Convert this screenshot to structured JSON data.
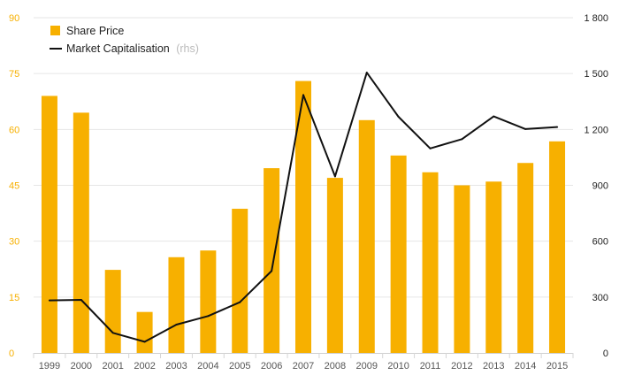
{
  "chart_data": {
    "type": "bar",
    "categories": [
      "1999",
      "2000",
      "2001",
      "2002",
      "2003",
      "2004",
      "2005",
      "2006",
      "2007",
      "2008",
      "2009",
      "2010",
      "2011",
      "2012",
      "2013",
      "2014",
      "2015"
    ],
    "series": [
      {
        "name": "Share Price",
        "type": "bar",
        "axis": "left",
        "color": "#f7b000",
        "values": [
          69,
          64.5,
          22.3,
          11,
          25.7,
          27.5,
          38.7,
          49.6,
          73,
          47,
          62.5,
          53,
          48.5,
          45,
          46,
          51,
          56.8
        ]
      },
      {
        "name": "Market Capitalisation",
        "name_suffix": "(rhs)",
        "type": "line",
        "axis": "right",
        "color": "#111111",
        "values": [
          282,
          285,
          108,
          60,
          152,
          198,
          272,
          440,
          1385,
          948,
          1505,
          1268,
          1098,
          1148,
          1270,
          1202,
          1213
        ]
      }
    ],
    "y_left": {
      "min": 0,
      "max": 90,
      "ticks": [
        "0",
        "15",
        "30",
        "45",
        "60",
        "75",
        "90"
      ],
      "color": "#f7b000"
    },
    "y_right": {
      "min": 0,
      "max": 1800,
      "ticks": [
        "0",
        "300",
        "600",
        "900",
        "1 200",
        "1 500",
        "1 800"
      ],
      "color": "#222222"
    },
    "grid": true,
    "legend_position": "top-left",
    "title": "",
    "xlabel": "",
    "ylabel": ""
  }
}
